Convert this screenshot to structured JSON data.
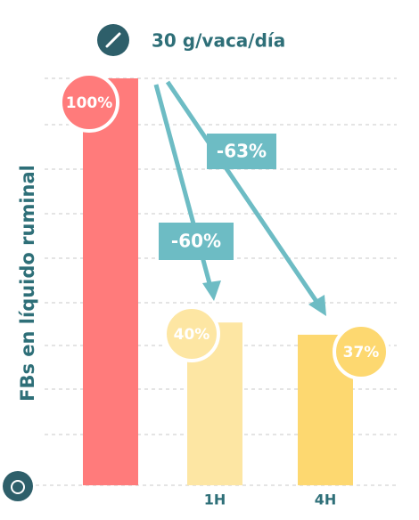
{
  "chart_data": {
    "type": "bar",
    "title": "30 g/vaca/día",
    "y_label": "FBs en líquido ruminal",
    "categories": [
      null,
      "1H",
      "4H"
    ],
    "values": [
      100,
      40,
      37
    ],
    "value_labels": [
      "100%",
      "40%",
      "37%"
    ],
    "colors": [
      "#ff7b7b",
      "#fde6a3",
      "#fdd870"
    ],
    "ylim": [
      0,
      100
    ],
    "annotations": [
      "-60%",
      "-63%"
    ]
  }
}
